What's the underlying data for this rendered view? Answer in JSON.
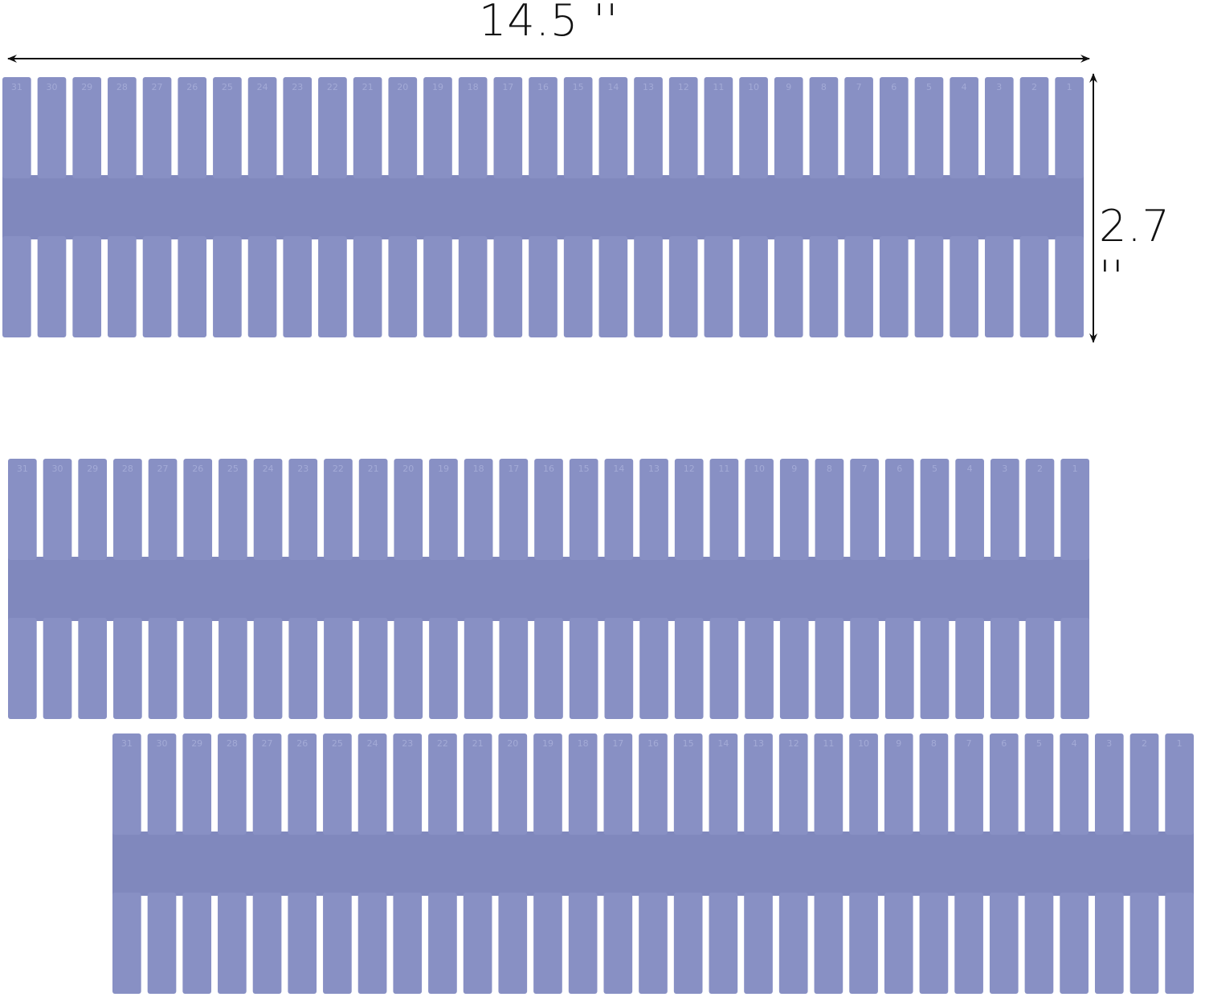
{
  "dimensions": {
    "width_label": "14.5 ''",
    "height_label": "2.7 ''"
  },
  "colors": {
    "divider": "#8890c4",
    "divider_shade": "#8088bd",
    "emboss": "#a3aad6",
    "arrow": "#111111",
    "background": "#ffffff"
  },
  "divider": {
    "count": 3,
    "teeth_per_row": 31,
    "tooth_numbers": [
      "31",
      "30",
      "29",
      "28",
      "27",
      "26",
      "25",
      "24",
      "23",
      "22",
      "21",
      "20",
      "19",
      "18",
      "17",
      "16",
      "15",
      "14",
      "13",
      "12",
      "11",
      "10",
      "9",
      "8",
      "7",
      "6",
      "5",
      "4",
      "3",
      "2",
      "1"
    ]
  }
}
